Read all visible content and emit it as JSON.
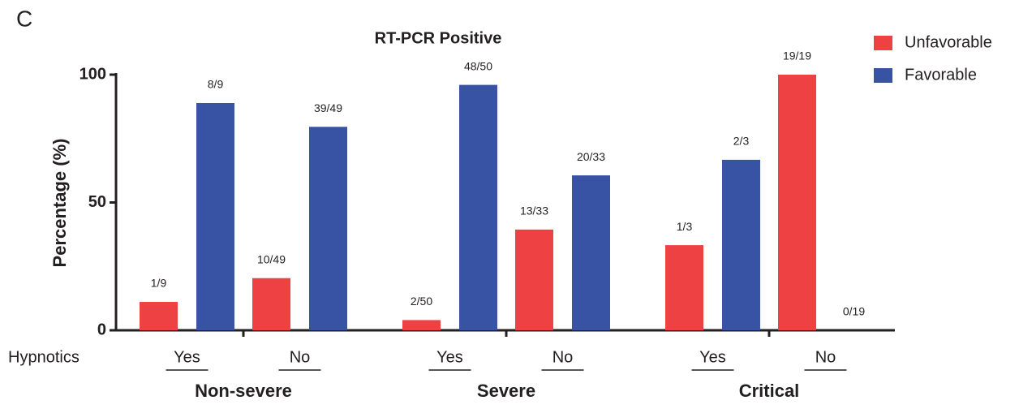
{
  "panel_label": "C",
  "chart_data": {
    "type": "bar",
    "title": "RT-PCR  Positive",
    "y_label": "Percentage (%)",
    "row_label": "Hypnotics",
    "categories": [
      "Yes",
      "No",
      "Yes",
      "No",
      "Yes",
      "No"
    ],
    "groups": [
      "Non-severe",
      "Severe",
      "Critical"
    ],
    "series": [
      {
        "name": "Unfavorable",
        "color": "#ee4144",
        "values": [
          11.1,
          20.4,
          4,
          39.4,
          33.3,
          100
        ],
        "value_labels": [
          "1/9",
          "10/49",
          "2/50",
          "13/33",
          "1/3",
          "19/19"
        ]
      },
      {
        "name": "Favorable",
        "color": "#3953a4",
        "values": [
          88.9,
          79.6,
          96,
          60.6,
          66.7,
          0
        ],
        "value_labels": [
          "8/9",
          "39/49",
          "48/50",
          "20/33",
          "2/3",
          "0/19"
        ]
      }
    ],
    "ylim": [
      0,
      100
    ],
    "yticks": [
      0,
      50,
      100
    ],
    "grid": false,
    "legend": "top-right"
  }
}
